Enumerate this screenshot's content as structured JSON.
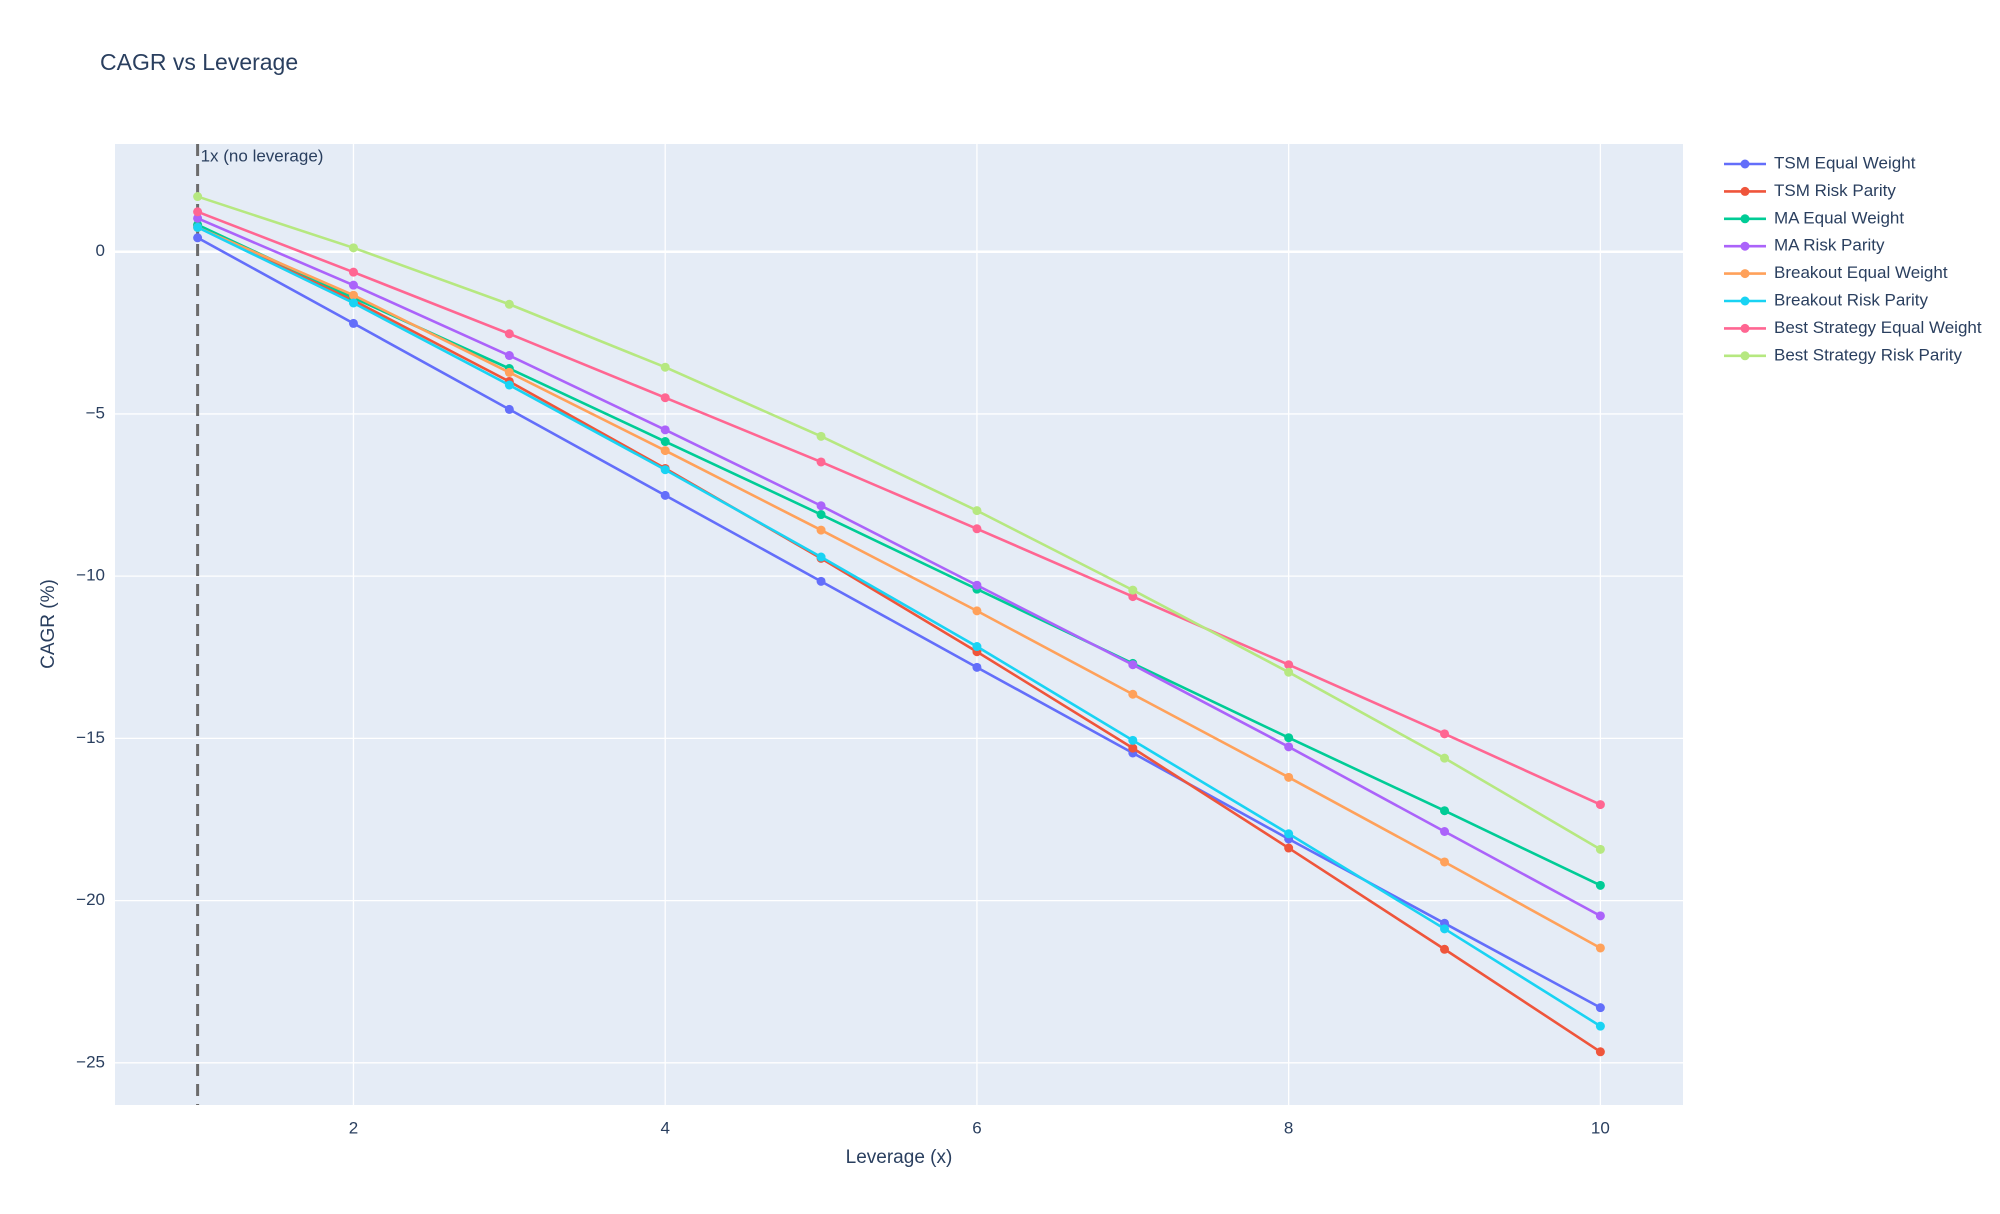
{
  "chart_data": {
    "type": "line",
    "title": "CAGR vs Leverage",
    "x_label": "Leverage (x)",
    "y_label": "CAGR (%)",
    "x": [
      1,
      2,
      3,
      4,
      5,
      6,
      7,
      8,
      9,
      10
    ],
    "series": [
      {
        "name": "TSM Equal Weight",
        "color": "#636efa",
        "values": [
          0.43,
          -2.21,
          -4.86,
          -7.51,
          -10.16,
          -12.81,
          -15.45,
          -18.1,
          -20.7,
          -23.3
        ]
      },
      {
        "name": "TSM Risk Parity",
        "color": "#ef553b",
        "values": [
          0.8,
          -1.5,
          -4.0,
          -6.68,
          -9.45,
          -12.33,
          -15.3,
          -18.38,
          -21.5,
          -24.66
        ]
      },
      {
        "name": "MA Equal Weight",
        "color": "#00cc96",
        "values": [
          0.83,
          -1.42,
          -3.6,
          -5.85,
          -8.1,
          -10.4,
          -12.69,
          -14.98,
          -17.23,
          -19.53
        ]
      },
      {
        "name": "MA Risk Parity",
        "color": "#ab63fa",
        "values": [
          1.03,
          -1.03,
          -3.2,
          -5.49,
          -7.83,
          -10.28,
          -12.73,
          -15.26,
          -17.87,
          -20.47
        ]
      },
      {
        "name": "Breakout Equal Weight",
        "color": "#ffa15a",
        "values": [
          0.75,
          -1.34,
          -3.72,
          -6.13,
          -8.58,
          -11.07,
          -13.64,
          -16.2,
          -18.81,
          -21.46
        ]
      },
      {
        "name": "Breakout Risk Parity",
        "color": "#19d3f3",
        "values": [
          0.75,
          -1.58,
          -4.11,
          -6.72,
          -9.41,
          -12.17,
          -15.06,
          -17.94,
          -20.87,
          -23.87
        ]
      },
      {
        "name": "Best Strategy Equal Weight",
        "color": "#ff6692",
        "values": [
          1.23,
          -0.63,
          -2.53,
          -4.5,
          -6.48,
          -8.54,
          -10.63,
          -12.73,
          -14.86,
          -17.04
        ]
      },
      {
        "name": "Best Strategy Risk Parity",
        "color": "#b6e880",
        "values": [
          1.7,
          0.12,
          -1.62,
          -3.56,
          -5.69,
          -7.98,
          -10.43,
          -12.96,
          -15.61,
          -18.42
        ]
      }
    ],
    "xlim": [
      0.47,
      10.53
    ],
    "xticks": [
      2,
      4,
      6,
      8,
      10
    ],
    "ylim": [
      -26.3,
      3.32
    ],
    "yticks": [
      {
        "value": -25,
        "label": "−25"
      },
      {
        "value": -20,
        "label": "−20"
      },
      {
        "value": -15,
        "label": "−15"
      },
      {
        "value": -10,
        "label": "−10"
      },
      {
        "value": -5,
        "label": "−5"
      },
      0
    ],
    "grid": true,
    "legend": "right",
    "annotations": [
      {
        "x": 1,
        "text": "1x (no leverage)"
      }
    ]
  }
}
